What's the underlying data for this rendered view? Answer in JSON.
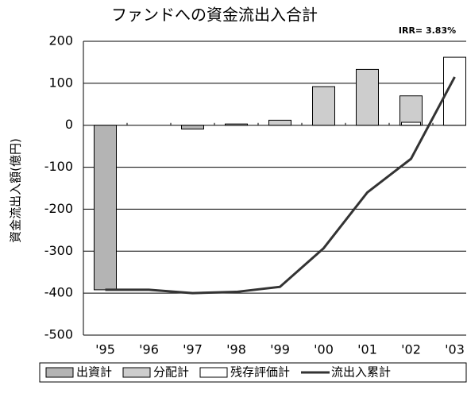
{
  "chart_data": {
    "type": "bar",
    "title": "ファンドへの資金流出入合計",
    "annotation": "IRR= 3.83%",
    "y_label": "資金流出入額(億円)",
    "categories": [
      "'95",
      "'96",
      "'97",
      "'98",
      "'99",
      "'00",
      "'01",
      "'02",
      "'03"
    ],
    "series": [
      {
        "name": "出資計",
        "type": "bar",
        "color": "#b4b4b4",
        "values": [
          -392,
          0,
          -9,
          0,
          0,
          0,
          0,
          0,
          0
        ]
      },
      {
        "name": "分配計",
        "type": "bar",
        "color": "#cdcdcd",
        "values": [
          0,
          0,
          0,
          3,
          12,
          92,
          133,
          70,
          0
        ]
      },
      {
        "name": "残存評価計",
        "type": "bar",
        "color": "#ffffff",
        "values": [
          0,
          0,
          0,
          0,
          0,
          0,
          0,
          7,
          162
        ]
      },
      {
        "name": "流出入累計",
        "type": "line",
        "color": "#333333",
        "values": [
          -392,
          -392,
          -400,
          -397,
          -385,
          -293,
          -160,
          -80,
          115
        ]
      }
    ],
    "ylim": [
      -500,
      200
    ],
    "yticks": [
      -500,
      -400,
      -300,
      -200,
      -100,
      0,
      100,
      200
    ],
    "grid": true
  }
}
